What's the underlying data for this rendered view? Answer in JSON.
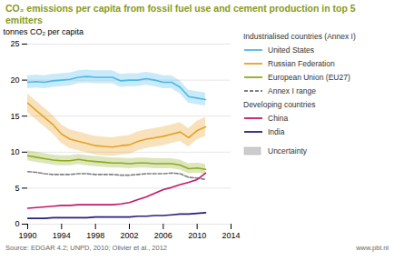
{
  "chart_data": {
    "type": "line",
    "title": "CO₂ emissions per capita from fossil fuel use and cement production in top 5 emitters",
    "title_color": "#8a9a1a",
    "ylabel": "tonnes CO₂ per capita",
    "source": "Source: EDGAR 4.2; UNPD, 2010; Olivier et al., 2012",
    "website": "www.pbl.nl",
    "band_label": "Uncertainty",
    "x": [
      1990,
      1991,
      1992,
      1993,
      1994,
      1995,
      1996,
      1997,
      1998,
      1999,
      2000,
      2001,
      2002,
      2003,
      2004,
      2005,
      2006,
      2007,
      2008,
      2009,
      2010,
      2011
    ],
    "series": [
      {
        "name": "United States",
        "group": "Industrialised countries (Annex I)",
        "color": "#4db8e8",
        "line_style": "solid",
        "values": [
          19.7,
          19.8,
          19.7,
          19.9,
          20.0,
          20.1,
          20.4,
          20.5,
          20.4,
          20.4,
          20.4,
          19.9,
          20.0,
          20.0,
          20.2,
          20.0,
          19.7,
          19.7,
          19.0,
          17.7,
          17.5,
          17.3
        ],
        "low": [
          18.8,
          18.9,
          18.8,
          19.0,
          19.1,
          19.2,
          19.5,
          19.6,
          19.5,
          19.5,
          19.5,
          19.0,
          19.1,
          19.1,
          19.3,
          19.1,
          18.8,
          18.8,
          18.1,
          16.8,
          16.6,
          16.4
        ],
        "high": [
          20.6,
          20.7,
          20.6,
          20.8,
          20.9,
          21.0,
          21.3,
          21.4,
          21.3,
          21.3,
          21.3,
          20.8,
          20.9,
          20.9,
          21.1,
          20.9,
          20.6,
          20.6,
          19.9,
          18.6,
          18.4,
          18.2
        ]
      },
      {
        "name": "Russian Federation",
        "group": "Industrialised countries (Annex I)",
        "color": "#e8a020",
        "line_style": "solid",
        "values": [
          16.8,
          15.8,
          14.8,
          13.8,
          12.5,
          11.8,
          11.5,
          11.2,
          10.9,
          10.8,
          10.7,
          10.9,
          11.0,
          11.5,
          11.8,
          12.0,
          12.2,
          12.5,
          12.8,
          12.0,
          13.0,
          13.5
        ],
        "low": [
          15.5,
          14.5,
          13.5,
          12.5,
          11.2,
          10.5,
          10.2,
          9.9,
          9.6,
          9.5,
          9.4,
          9.6,
          9.7,
          10.2,
          10.5,
          10.7,
          10.9,
          11.2,
          11.5,
          10.7,
          11.7,
          12.2
        ],
        "high": [
          18.1,
          17.1,
          16.1,
          15.1,
          13.8,
          13.1,
          12.8,
          12.5,
          12.2,
          12.1,
          12.0,
          12.2,
          12.3,
          12.8,
          13.1,
          13.3,
          13.5,
          13.8,
          14.1,
          13.3,
          14.3,
          14.8
        ]
      },
      {
        "name": "European Union (EU27)",
        "group": "Industrialised countries (Annex I)",
        "color": "#8faa1e",
        "line_style": "solid",
        "values": [
          9.5,
          9.3,
          9.1,
          8.9,
          8.8,
          8.8,
          9.0,
          8.8,
          8.7,
          8.6,
          8.5,
          8.5,
          8.4,
          8.5,
          8.5,
          8.4,
          8.4,
          8.4,
          8.2,
          7.7,
          7.8,
          7.6
        ],
        "low": [
          8.8,
          8.6,
          8.4,
          8.2,
          8.1,
          8.1,
          8.3,
          8.1,
          8.0,
          7.9,
          7.8,
          7.8,
          7.7,
          7.8,
          7.8,
          7.7,
          7.7,
          7.7,
          7.5,
          7.0,
          7.1,
          6.9
        ],
        "high": [
          10.2,
          10.0,
          9.8,
          9.6,
          9.5,
          9.5,
          9.7,
          9.5,
          9.4,
          9.3,
          9.2,
          9.2,
          9.1,
          9.2,
          9.2,
          9.1,
          9.1,
          9.1,
          8.9,
          8.4,
          8.5,
          8.3
        ]
      },
      {
        "name": "Annex I range",
        "group": "Industrialised countries (Annex I)",
        "color": "#808080",
        "line_style": "dashed",
        "values": [
          7.3,
          7.2,
          7.0,
          6.9,
          6.9,
          6.9,
          7.0,
          7.0,
          6.9,
          6.9,
          6.9,
          6.8,
          6.8,
          6.9,
          7.0,
          7.0,
          7.0,
          7.1,
          7.0,
          6.5,
          6.4,
          6.2
        ]
      },
      {
        "name": "China",
        "group": "Developing countries",
        "color": "#c0186c",
        "line_style": "solid",
        "values": [
          2.2,
          2.3,
          2.4,
          2.5,
          2.6,
          2.6,
          2.7,
          2.7,
          2.7,
          2.7,
          2.7,
          2.8,
          3.0,
          3.4,
          3.8,
          4.3,
          4.8,
          5.1,
          5.5,
          5.8,
          6.2,
          7.1
        ]
      },
      {
        "name": "India",
        "group": "Developing countries",
        "color": "#2a1f7a",
        "line_style": "solid",
        "values": [
          0.8,
          0.8,
          0.8,
          0.9,
          0.9,
          0.9,
          0.9,
          0.9,
          1.0,
          1.0,
          1.0,
          1.0,
          1.0,
          1.1,
          1.1,
          1.2,
          1.2,
          1.3,
          1.4,
          1.4,
          1.5,
          1.6
        ]
      }
    ],
    "xlim": [
      1990,
      2014
    ],
    "xticks": [
      1990,
      1994,
      1998,
      2002,
      2006,
      2010,
      2014
    ],
    "ylim": [
      0,
      25
    ],
    "yticks": [
      0,
      5,
      10,
      15,
      20,
      25
    ],
    "grid": true
  }
}
